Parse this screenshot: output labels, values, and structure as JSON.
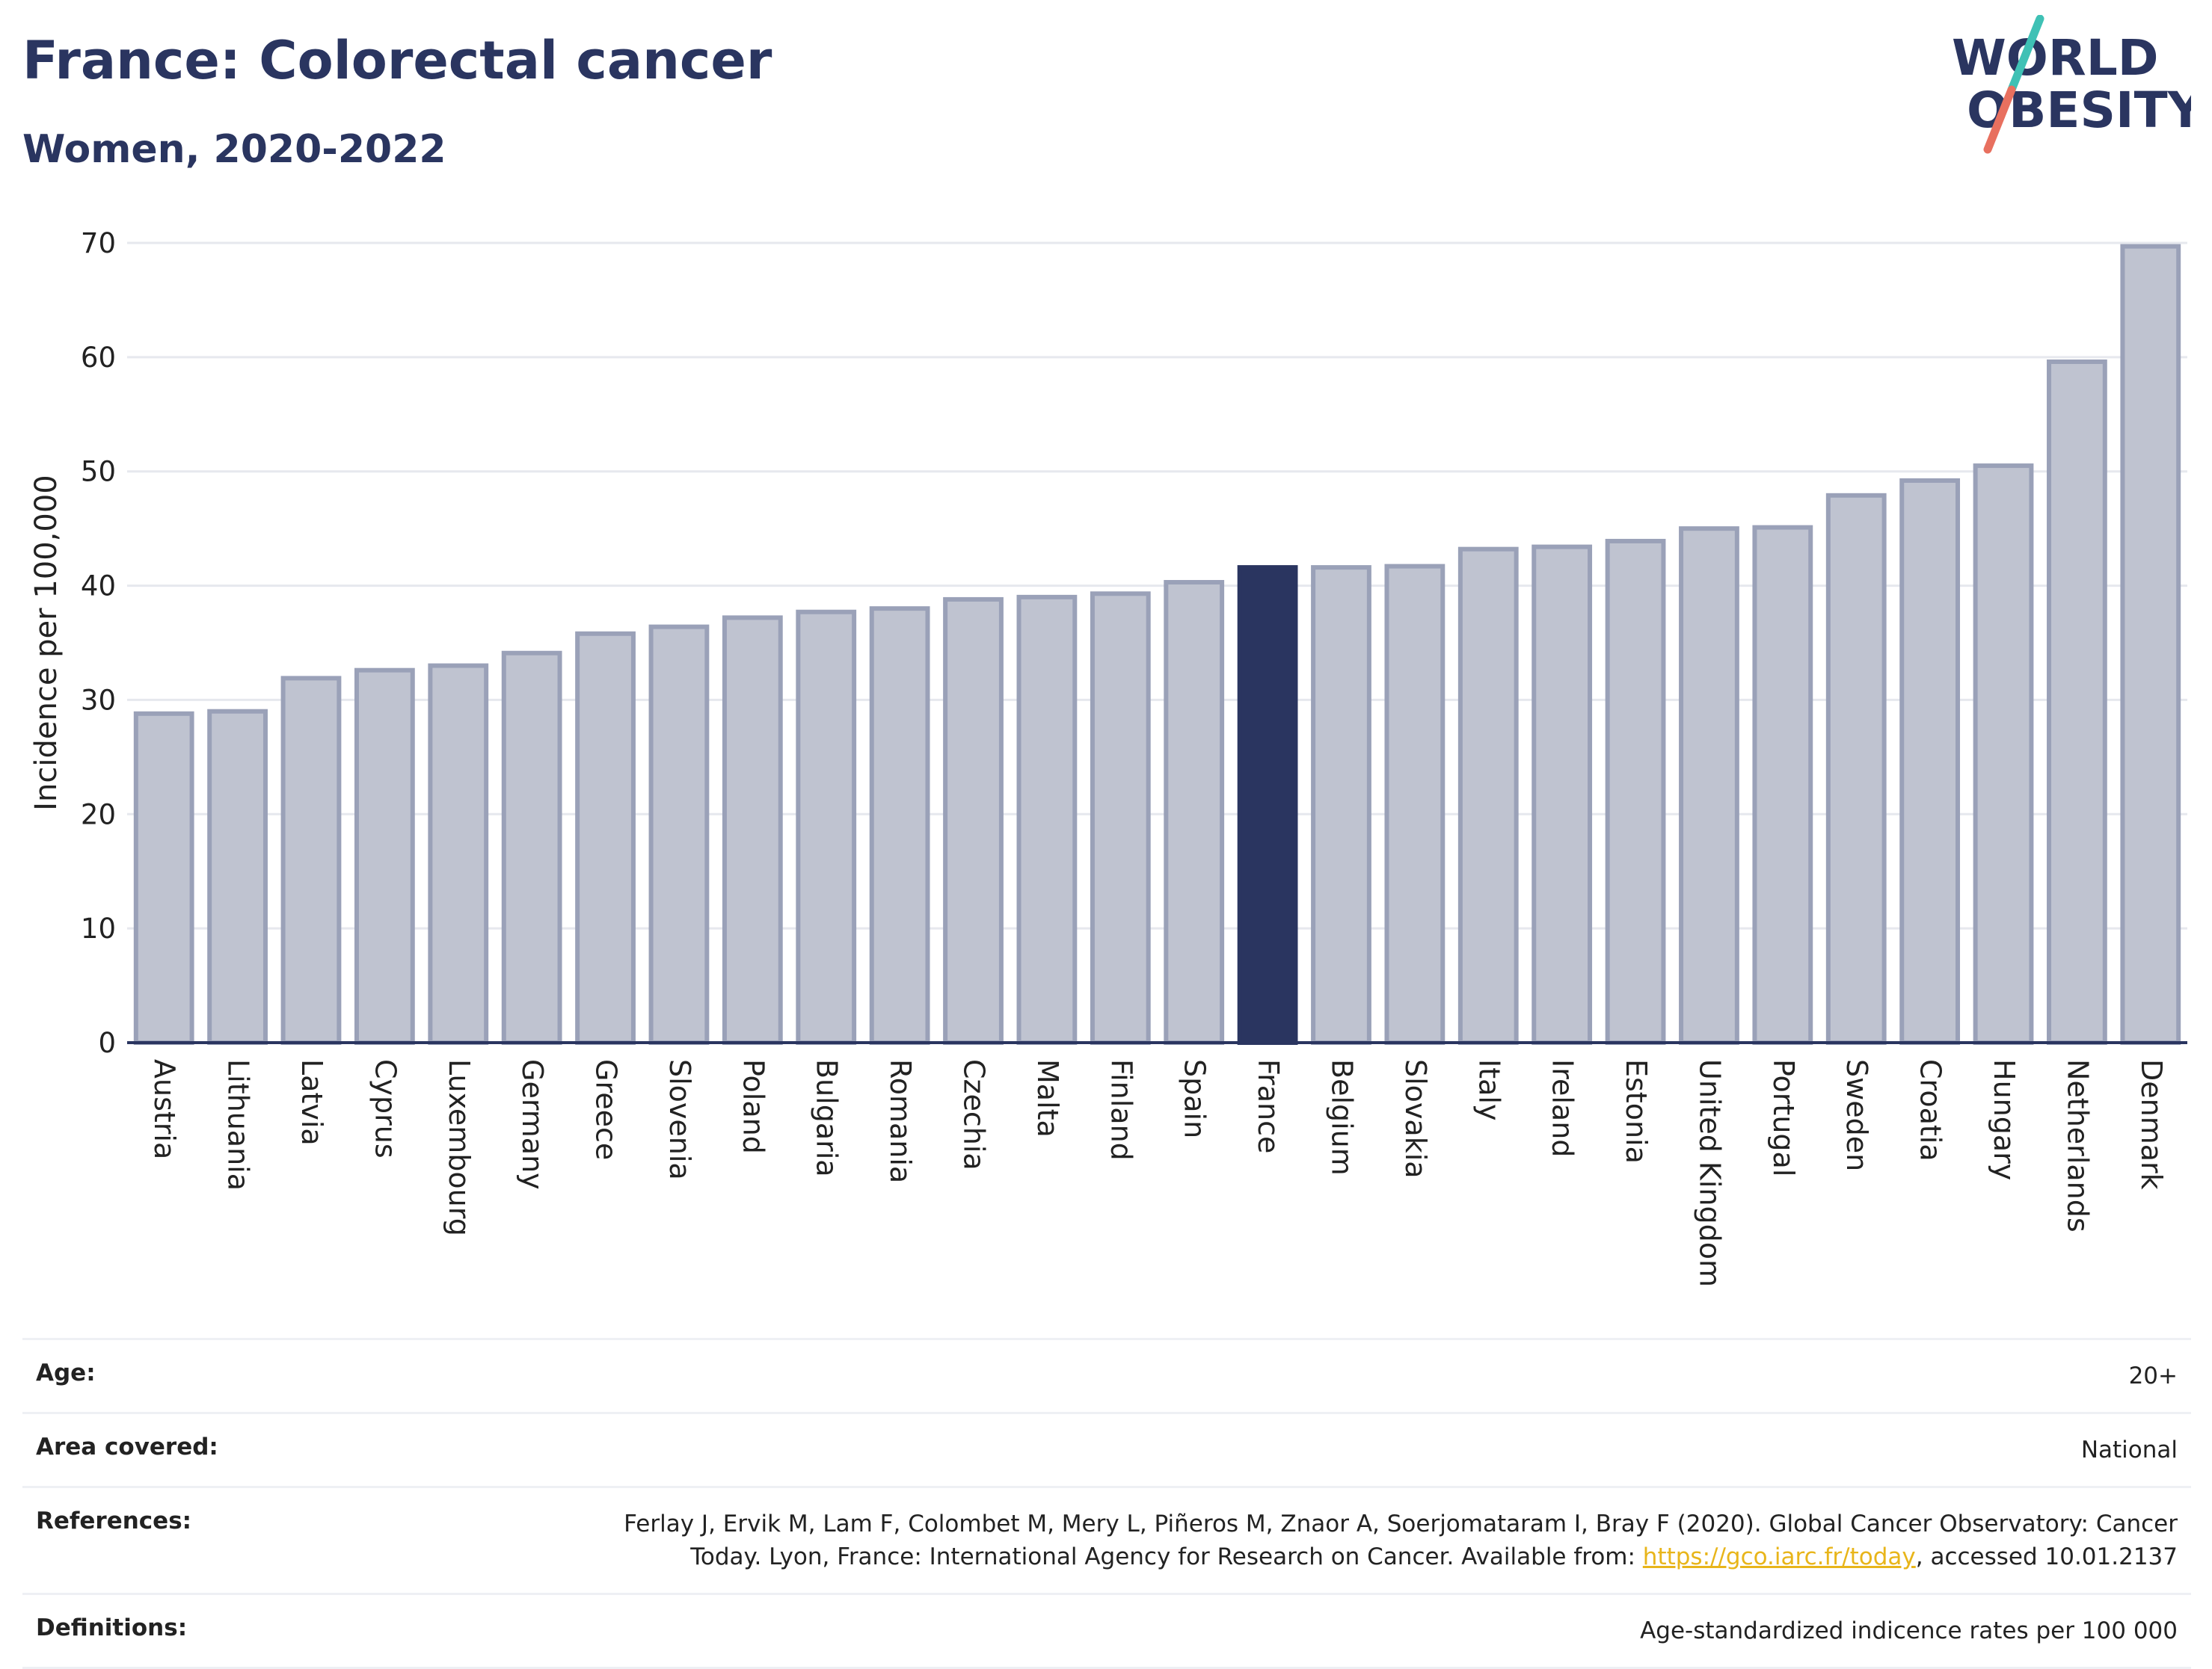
{
  "header": {
    "title": "France: Colorectal cancer",
    "subtitle": "Women, 2020-2022"
  },
  "logo": {
    "line1": "WORLD",
    "line2": "OBESITY",
    "colors": {
      "text": "#2a3560",
      "slash_top": "#3fc1b5",
      "slash_bottom": "#e8705f"
    }
  },
  "chart_data": {
    "type": "bar",
    "ylabel": "Incidence per 100,000",
    "xlabel": "",
    "ylim": [
      0,
      70
    ],
    "yticks": [
      0,
      10,
      20,
      30,
      40,
      50,
      60,
      70
    ],
    "grid": true,
    "legend": "none",
    "highlight": "France",
    "colors": {
      "default_fill": "#bfc3d0",
      "default_stroke": "#9aa1b8",
      "highlight": "#2a3560"
    },
    "categories": [
      "Austria",
      "Lithuania",
      "Latvia",
      "Cyprus",
      "Luxembourg",
      "Germany",
      "Greece",
      "Slovenia",
      "Poland",
      "Bulgaria",
      "Romania",
      "Czechia",
      "Malta",
      "Finland",
      "Spain",
      "France",
      "Belgium",
      "Slovakia",
      "Italy",
      "Ireland",
      "Estonia",
      "United Kingdom",
      "Portugal",
      "Sweden",
      "Croatia",
      "Hungary",
      "Netherlands",
      "Denmark"
    ],
    "values": [
      28.8,
      29.0,
      31.9,
      32.6,
      33.0,
      34.1,
      35.8,
      36.4,
      37.2,
      37.7,
      38.0,
      38.8,
      39.0,
      39.3,
      40.3,
      41.6,
      41.6,
      41.7,
      43.2,
      43.4,
      43.9,
      45.0,
      45.1,
      47.9,
      49.2,
      50.5,
      59.6,
      69.7
    ]
  },
  "info": {
    "age": {
      "label": "Age:",
      "value": "20+"
    },
    "area": {
      "label": "Area covered:",
      "value": "National"
    },
    "references": {
      "label": "References:",
      "line1": "Ferlay J, Ervik M, Lam F, Colombet M, Mery L, Piñeros M, Znaor A, Soerjomataram I, Bray F (2020). Global Cancer Observatory: Cancer",
      "line2_pre": "Today. Lyon, France: International Agency for Research on Cancer. Available from: ",
      "link": "https://gco.iarc.fr/today",
      "line2_post": ", accessed 10.01.2137"
    },
    "definitions": {
      "label": "Definitions:",
      "value": "Age-standardized indicence rates per 100 000"
    }
  }
}
